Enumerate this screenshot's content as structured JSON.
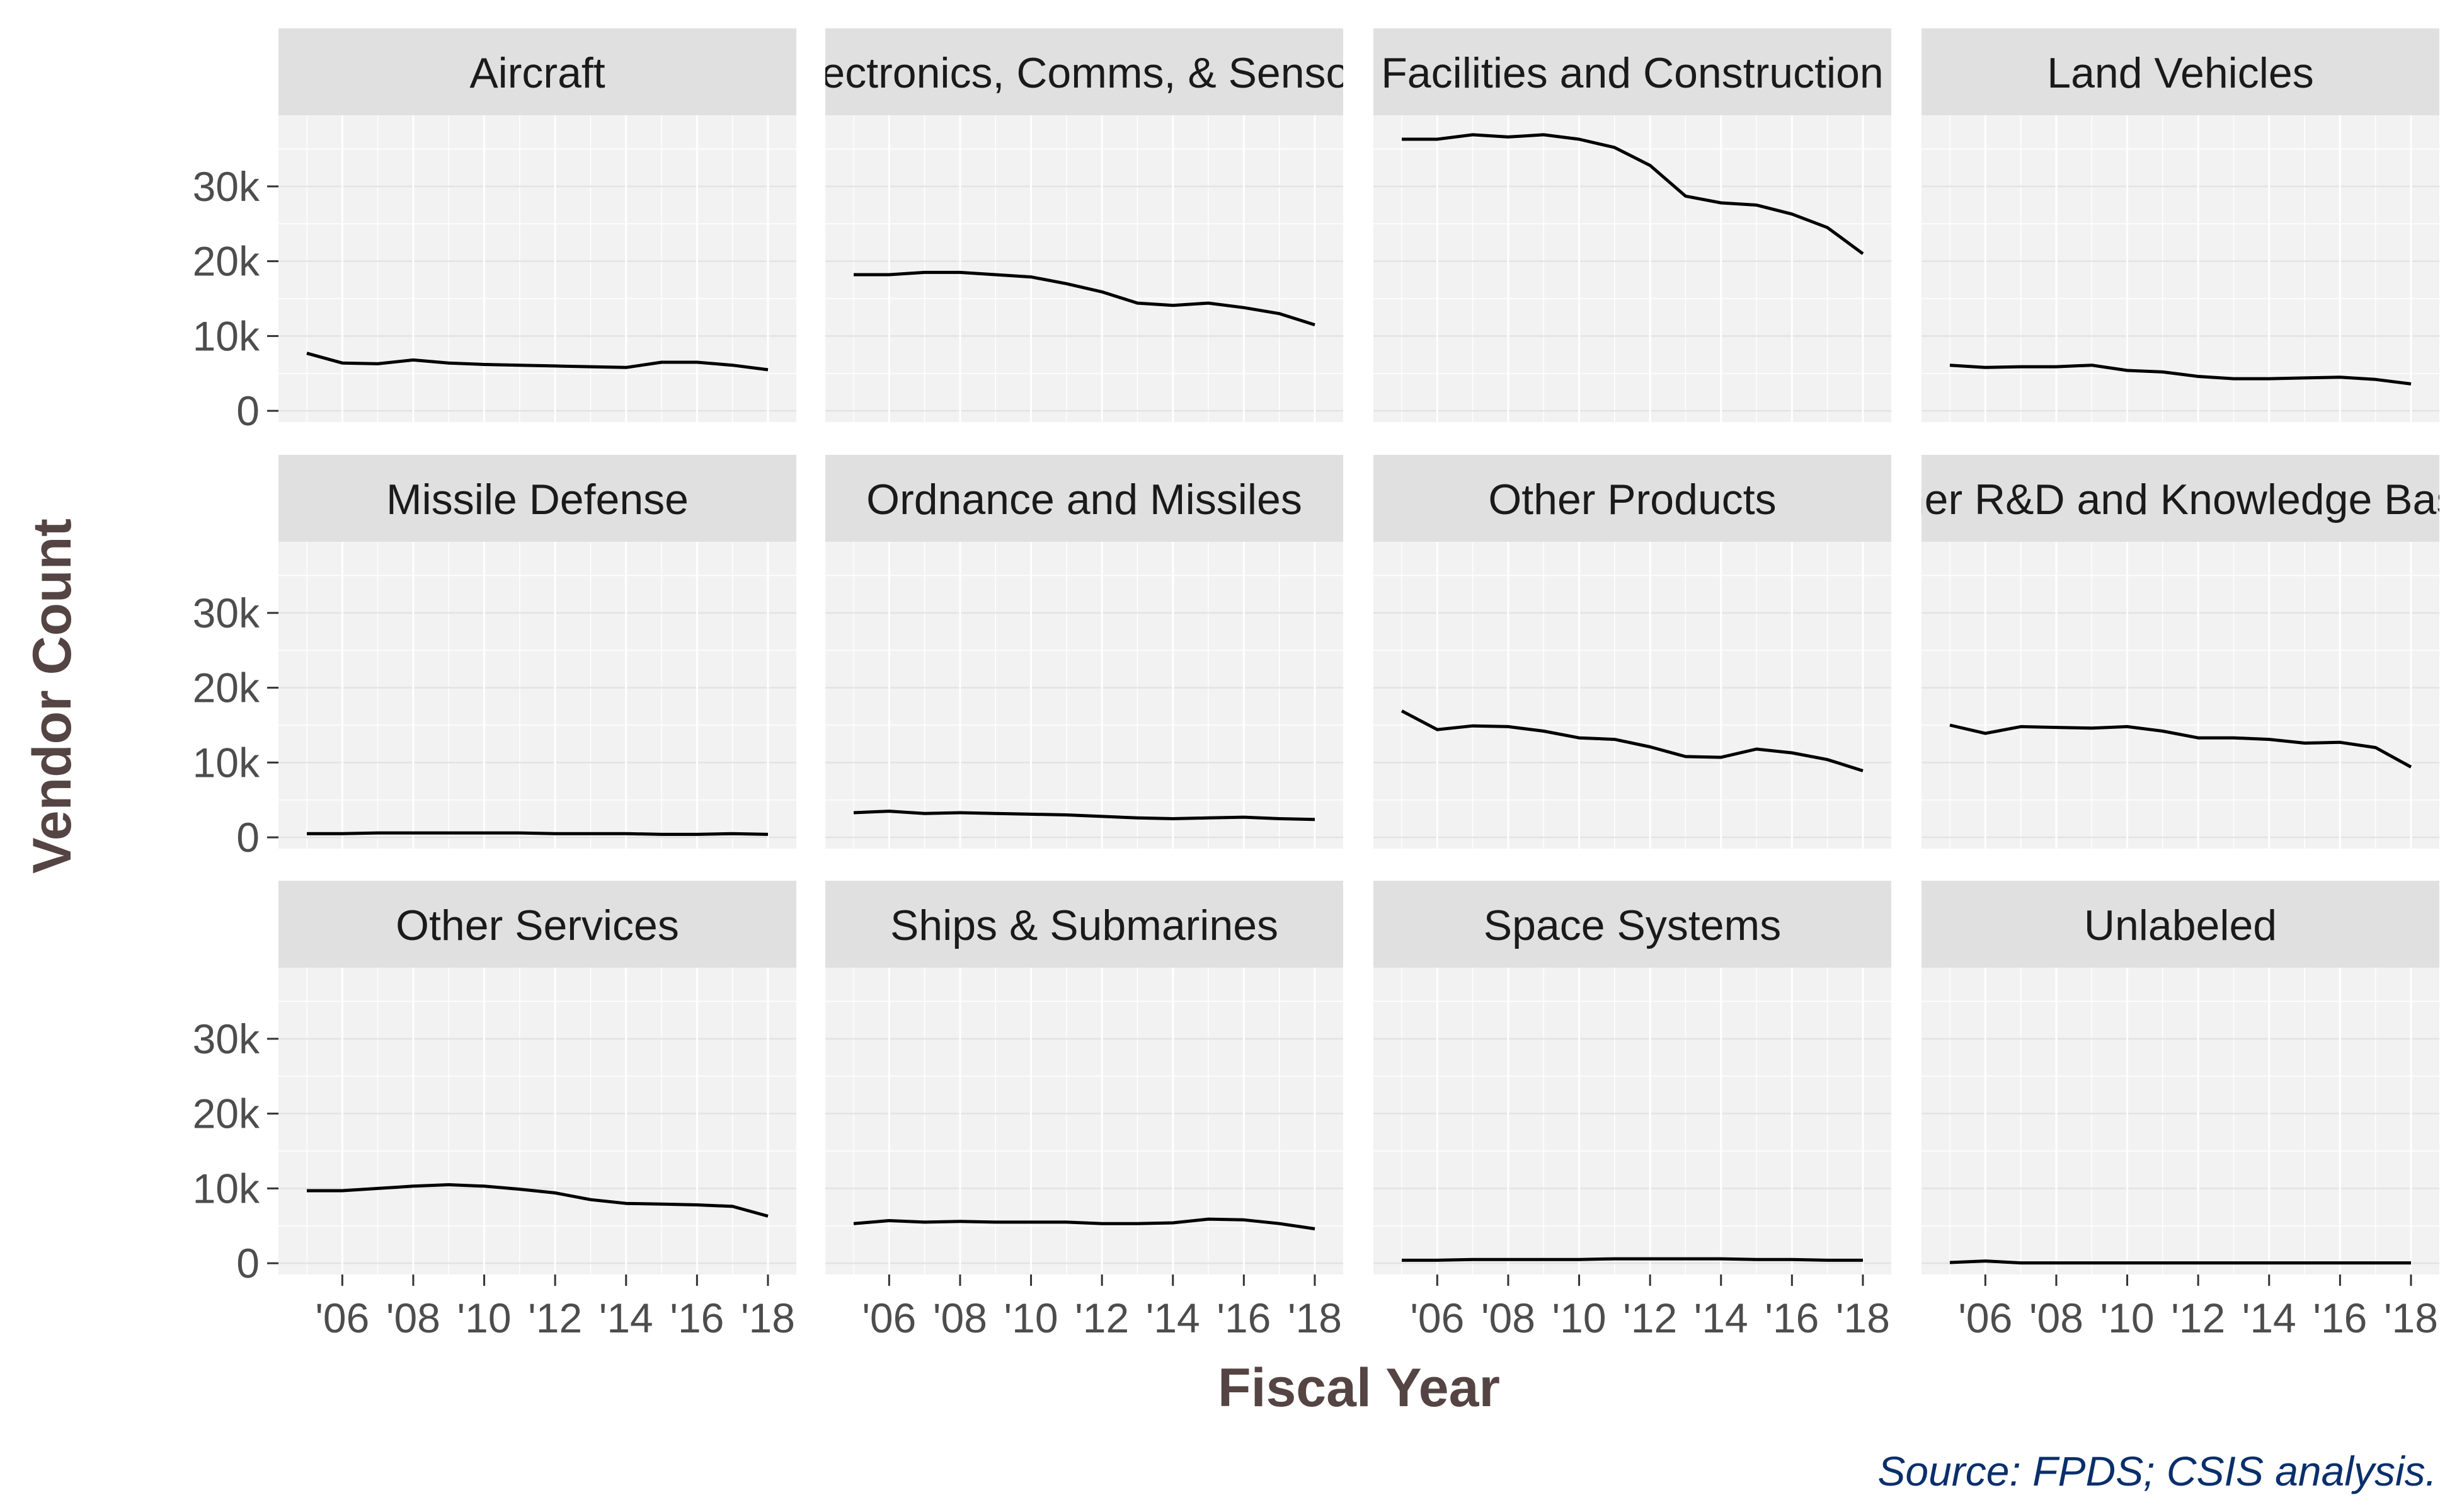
{
  "chart_data": {
    "type": "line",
    "facet_layout": "3x4",
    "xlabel": "Fiscal Year",
    "ylabel": "Vendor Count",
    "caption": "Source: FPDS; CSIS analysis.",
    "x": [
      2005,
      2006,
      2007,
      2008,
      2009,
      2010,
      2011,
      2012,
      2013,
      2014,
      2015,
      2016,
      2017,
      2018
    ],
    "xlim": [
      2004.2,
      2018.8
    ],
    "ylim": [
      -1500,
      39500
    ],
    "x_ticks": [
      2006,
      2008,
      2010,
      2012,
      2014,
      2016,
      2018
    ],
    "x_tick_labels": [
      "'06",
      "'08",
      "'10",
      "'12",
      "'14",
      "'16",
      "'18"
    ],
    "y_ticks": [
      0,
      10000,
      20000,
      30000
    ],
    "y_tick_labels": [
      "0",
      "10k",
      "20k",
      "30k"
    ],
    "grid": true,
    "line_color": "#000000",
    "panel_bg": "#f2f2f2",
    "strip_bg": "#e0e0e0",
    "facets": [
      {
        "title": "Aircraft",
        "values": [
          7700,
          6400,
          6300,
          6800,
          6400,
          6200,
          6100,
          6000,
          5900,
          5800,
          6500,
          6500,
          6100,
          5500
        ]
      },
      {
        "title": "Electronics, Comms, & Sensors",
        "values": [
          18200,
          18200,
          18500,
          18500,
          18200,
          17900,
          17000,
          15900,
          14400,
          14100,
          14400,
          13800,
          13000,
          11500
        ]
      },
      {
        "title": "Facilities and Construction",
        "values": [
          36300,
          36300,
          36900,
          36600,
          36900,
          36300,
          35200,
          32800,
          28700,
          27800,
          27500,
          26300,
          24500,
          21000
        ]
      },
      {
        "title": "Land Vehicles",
        "values": [
          6100,
          5800,
          5900,
          5900,
          6100,
          5400,
          5200,
          4600,
          4300,
          4300,
          4400,
          4500,
          4200,
          3600
        ]
      },
      {
        "title": "Missile Defense",
        "values": [
          500,
          500,
          600,
          600,
          600,
          600,
          600,
          500,
          500,
          500,
          400,
          400,
          500,
          400
        ]
      },
      {
        "title": "Ordnance and Missiles",
        "values": [
          3300,
          3500,
          3200,
          3300,
          3200,
          3100,
          3000,
          2800,
          2600,
          2500,
          2600,
          2700,
          2500,
          2400
        ]
      },
      {
        "title": "Other Products",
        "values": [
          16900,
          14400,
          14900,
          14800,
          14200,
          13300,
          13100,
          12100,
          10800,
          10700,
          11800,
          11300,
          10400,
          8900
        ]
      },
      {
        "title": "Other R&D and Knowledge Based",
        "values": [
          15000,
          13900,
          14800,
          14700,
          14600,
          14800,
          14200,
          13300,
          13300,
          13100,
          12600,
          12700,
          12000,
          9400
        ]
      },
      {
        "title": "Other Services",
        "values": [
          9700,
          9700,
          10000,
          10300,
          10500,
          10300,
          9900,
          9400,
          8500,
          8000,
          7900,
          7800,
          7600,
          6300
        ]
      },
      {
        "title": "Ships & Submarines",
        "values": [
          5300,
          5700,
          5500,
          5600,
          5500,
          5500,
          5500,
          5300,
          5300,
          5400,
          5900,
          5800,
          5300,
          4600
        ]
      },
      {
        "title": "Space Systems",
        "values": [
          400,
          400,
          500,
          500,
          500,
          500,
          600,
          600,
          600,
          600,
          500,
          500,
          400,
          400
        ]
      },
      {
        "title": "Unlabeled",
        "values": [
          100,
          300,
          50,
          50,
          50,
          50,
          50,
          50,
          50,
          50,
          50,
          50,
          50,
          50
        ]
      }
    ]
  }
}
